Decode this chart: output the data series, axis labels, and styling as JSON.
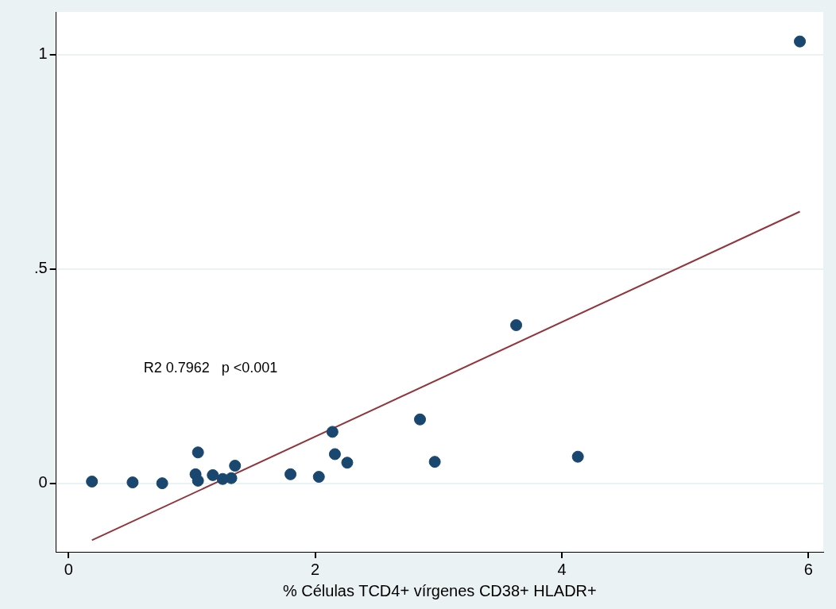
{
  "chart_data": {
    "type": "scatter",
    "xlabel": "% Células TCD4+ vírgenes CD38+ HLADR+",
    "xlim": [
      -0.1,
      6.12
    ],
    "xticks": [
      0,
      2,
      4,
      6
    ],
    "ylim": [
      -0.16,
      1.1
    ],
    "yticks": [
      0,
      {
        "value": 0.5,
        "label": ".5"
      },
      1
    ],
    "grid": "y",
    "legend": false,
    "series": [
      {
        "marker": "circle",
        "color": "#1a476f",
        "x": [
          0.19,
          0.52,
          0.76,
          1.03,
          1.05,
          1.05,
          1.17,
          1.25,
          1.32,
          1.35,
          1.8,
          2.03,
          2.14,
          2.16,
          2.26,
          2.85,
          2.97,
          3.63,
          4.13,
          5.93
        ],
        "values": [
          0.004,
          0.002,
          0.0,
          0.021,
          0.006,
          0.072,
          0.019,
          0.01,
          0.012,
          0.041,
          0.021,
          0.015,
          0.12,
          0.068,
          0.048,
          0.149,
          0.05,
          0.369,
          0.062,
          1.031
        ]
      },
      {
        "type": "line",
        "marker": "none",
        "color": "#90353b",
        "x": [
          0.19,
          5.93
        ],
        "values": [
          -0.133,
          0.634
        ]
      }
    ],
    "annotations": [
      "R2 0.7962   p <0.001"
    ]
  }
}
